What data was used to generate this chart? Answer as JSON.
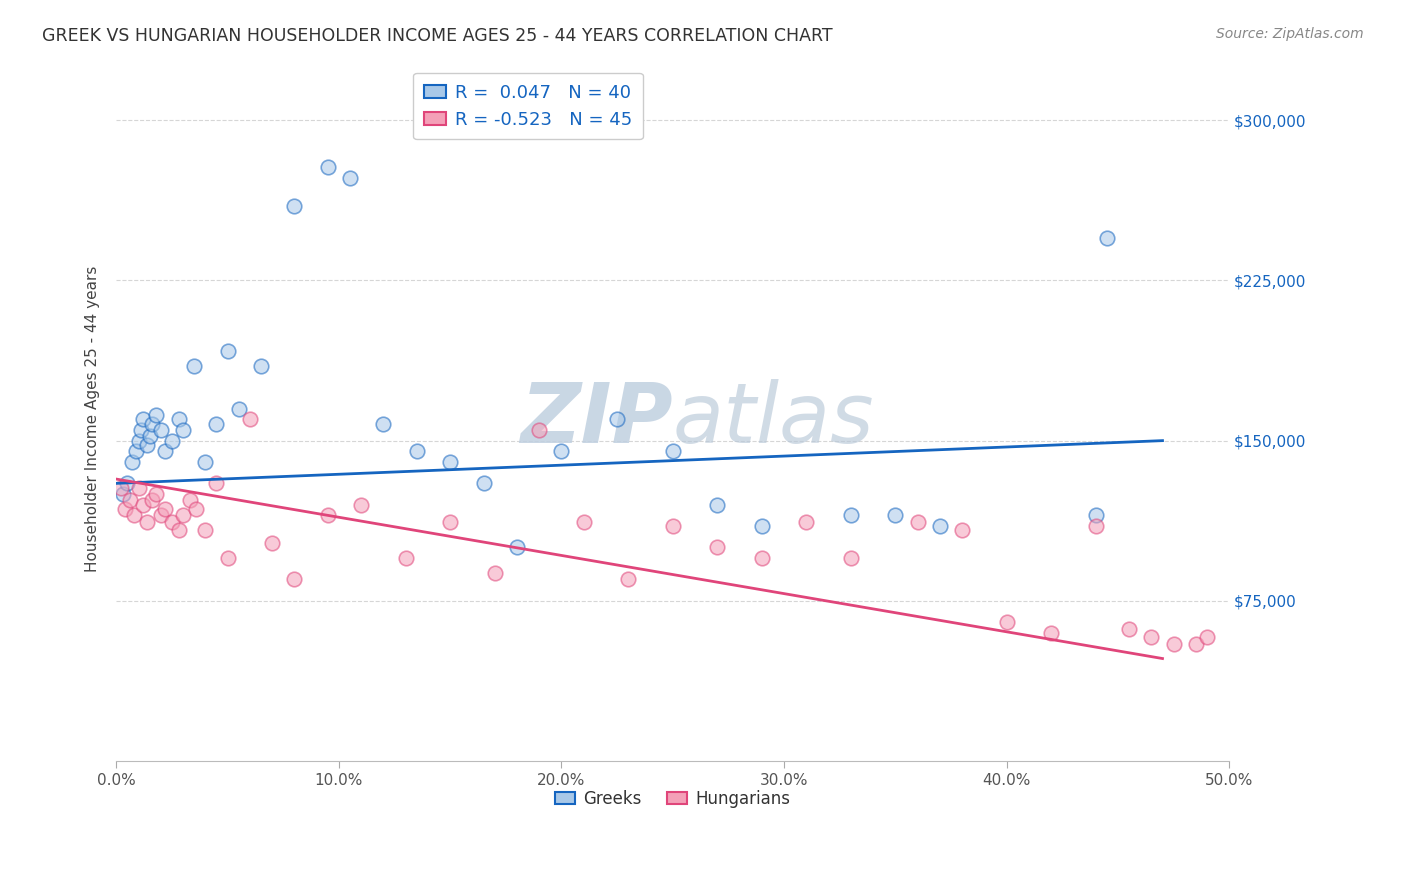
{
  "title": "GREEK VS HUNGARIAN HOUSEHOLDER INCOME AGES 25 - 44 YEARS CORRELATION CHART",
  "source": "Source: ZipAtlas.com",
  "ylabel": "Householder Income Ages 25 - 44 years",
  "xlabel_ticks": [
    "0.0%",
    "10.0%",
    "20.0%",
    "30.0%",
    "40.0%",
    "50.0%"
  ],
  "xlabel_vals": [
    0,
    10,
    20,
    30,
    40,
    50
  ],
  "ytick_labels": [
    "$75,000",
    "$150,000",
    "$225,000",
    "$300,000"
  ],
  "ytick_vals": [
    75000,
    150000,
    225000,
    300000
  ],
  "ylim": [
    0,
    320000
  ],
  "xlim": [
    0,
    50
  ],
  "watermark": "ZIPatlas",
  "legend_greek_r": "R =  0.047",
  "legend_greek_n": "N = 40",
  "legend_hung_r": "R = -0.523",
  "legend_hung_n": "N = 45",
  "greek_color": "#a8c8e8",
  "hung_color": "#f4a0b8",
  "greek_line_color": "#1565C0",
  "hung_line_color": "#e0457a",
  "title_color": "#333333",
  "source_color": "#888888",
  "watermark_color": "#c8d8e8",
  "legend_text_color": "#1565C0",
  "greek_scatter_x": [
    0.3,
    0.5,
    0.7,
    0.9,
    1.0,
    1.1,
    1.2,
    1.4,
    1.5,
    1.6,
    1.8,
    2.0,
    2.2,
    2.5,
    2.8,
    3.0,
    3.5,
    4.0,
    4.5,
    5.0,
    5.5,
    6.5,
    8.0,
    9.5,
    10.5,
    12.0,
    13.5,
    15.0,
    16.5,
    18.0,
    20.0,
    22.5,
    25.0,
    27.0,
    29.0,
    33.0,
    35.0,
    37.0,
    44.0,
    44.5
  ],
  "greek_scatter_y": [
    125000,
    130000,
    140000,
    145000,
    150000,
    155000,
    160000,
    148000,
    152000,
    158000,
    162000,
    155000,
    145000,
    150000,
    160000,
    155000,
    185000,
    140000,
    158000,
    192000,
    165000,
    185000,
    260000,
    278000,
    273000,
    158000,
    145000,
    140000,
    130000,
    100000,
    145000,
    160000,
    145000,
    120000,
    110000,
    115000,
    115000,
    110000,
    115000,
    245000
  ],
  "hung_scatter_x": [
    0.2,
    0.4,
    0.6,
    0.8,
    1.0,
    1.2,
    1.4,
    1.6,
    1.8,
    2.0,
    2.2,
    2.5,
    2.8,
    3.0,
    3.3,
    3.6,
    4.0,
    4.5,
    5.0,
    6.0,
    7.0,
    8.0,
    9.5,
    11.0,
    13.0,
    15.0,
    17.0,
    19.0,
    21.0,
    23.0,
    25.0,
    27.0,
    29.0,
    31.0,
    33.0,
    36.0,
    38.0,
    40.0,
    42.0,
    44.0,
    45.5,
    46.5,
    47.5,
    48.5,
    49.0
  ],
  "hung_scatter_y": [
    128000,
    118000,
    122000,
    115000,
    128000,
    120000,
    112000,
    122000,
    125000,
    115000,
    118000,
    112000,
    108000,
    115000,
    122000,
    118000,
    108000,
    130000,
    95000,
    160000,
    102000,
    85000,
    115000,
    120000,
    95000,
    112000,
    88000,
    155000,
    112000,
    85000,
    110000,
    100000,
    95000,
    112000,
    95000,
    112000,
    108000,
    65000,
    60000,
    110000,
    62000,
    58000,
    55000,
    55000,
    58000
  ],
  "background_color": "#ffffff",
  "grid_color": "#cccccc",
  "marker_size": 110,
  "marker_alpha": 0.55,
  "marker_linewidth": 1.2,
  "greek_line_x0": 0,
  "greek_line_y0": 130000,
  "greek_line_x1": 47,
  "greek_line_y1": 150000,
  "hung_line_x0": 0,
  "hung_line_y0": 132000,
  "hung_line_x1": 47,
  "hung_line_y1": 48000
}
